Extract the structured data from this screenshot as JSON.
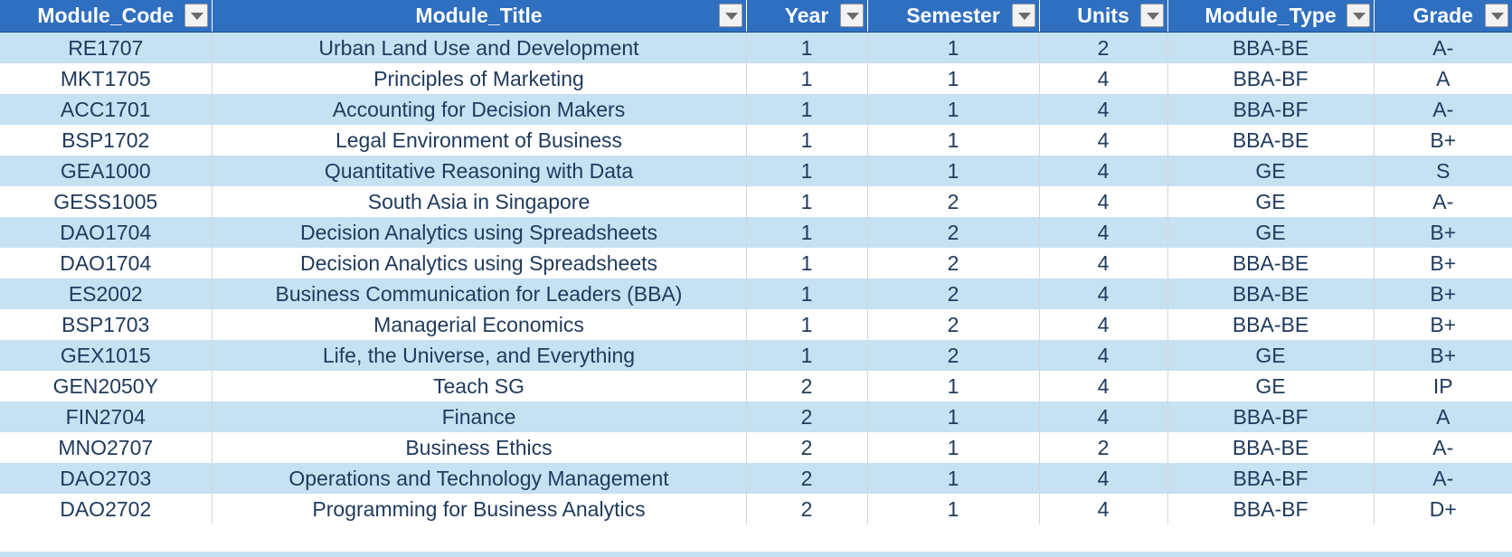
{
  "table": {
    "columns": [
      {
        "key": "code",
        "label": "Module_Code"
      },
      {
        "key": "title",
        "label": "Module_Title"
      },
      {
        "key": "year",
        "label": "Year"
      },
      {
        "key": "semester",
        "label": "Semester"
      },
      {
        "key": "units",
        "label": "Units"
      },
      {
        "key": "type",
        "label": "Module_Type"
      },
      {
        "key": "grade",
        "label": "Grade"
      }
    ],
    "rows": [
      {
        "code": "RE1707",
        "title": "Urban Land Use and Development",
        "year": "1",
        "semester": "1",
        "units": "2",
        "type": "BBA-BE",
        "grade": "A-"
      },
      {
        "code": "MKT1705",
        "title": "Principles of Marketing",
        "year": "1",
        "semester": "1",
        "units": "4",
        "type": "BBA-BF",
        "grade": "A"
      },
      {
        "code": "ACC1701",
        "title": "Accounting for Decision Makers",
        "year": "1",
        "semester": "1",
        "units": "4",
        "type": "BBA-BF",
        "grade": "A-"
      },
      {
        "code": "BSP1702",
        "title": "Legal Environment of Business",
        "year": "1",
        "semester": "1",
        "units": "4",
        "type": "BBA-BE",
        "grade": "B+"
      },
      {
        "code": "GEA1000",
        "title": "Quantitative Reasoning with Data",
        "year": "1",
        "semester": "1",
        "units": "4",
        "type": "GE",
        "grade": "S"
      },
      {
        "code": "GESS1005",
        "title": "South Asia in Singapore",
        "year": "1",
        "semester": "2",
        "units": "4",
        "type": "GE",
        "grade": "A-"
      },
      {
        "code": "DAO1704",
        "title": "Decision Analytics using Spreadsheets",
        "year": "1",
        "semester": "2",
        "units": "4",
        "type": "GE",
        "grade": "B+"
      },
      {
        "code": "DAO1704",
        "title": "Decision Analytics using Spreadsheets",
        "year": "1",
        "semester": "2",
        "units": "4",
        "type": "BBA-BE",
        "grade": "B+"
      },
      {
        "code": "ES2002",
        "title": "Business Communication for Leaders (BBA)",
        "year": "1",
        "semester": "2",
        "units": "4",
        "type": "BBA-BE",
        "grade": "B+"
      },
      {
        "code": "BSP1703",
        "title": "Managerial Economics",
        "year": "1",
        "semester": "2",
        "units": "4",
        "type": "BBA-BE",
        "grade": "B+"
      },
      {
        "code": "GEX1015",
        "title": "Life, the Universe, and Everything",
        "year": "1",
        "semester": "2",
        "units": "4",
        "type": "GE",
        "grade": "B+"
      },
      {
        "code": "GEN2050Y",
        "title": "Teach SG",
        "year": "2",
        "semester": "1",
        "units": "4",
        "type": "GE",
        "grade": "IP"
      },
      {
        "code": "FIN2704",
        "title": "Finance",
        "year": "2",
        "semester": "1",
        "units": "4",
        "type": "BBA-BF",
        "grade": "A"
      },
      {
        "code": "MNO2707",
        "title": "Business Ethics",
        "year": "2",
        "semester": "1",
        "units": "2",
        "type": "BBA-BE",
        "grade": "A-"
      },
      {
        "code": "DAO2703",
        "title": "Operations and Technology Management",
        "year": "2",
        "semester": "1",
        "units": "4",
        "type": "BBA-BF",
        "grade": "A-"
      },
      {
        "code": "DAO2702",
        "title": "Programming for Business Analytics",
        "year": "2",
        "semester": "1",
        "units": "4",
        "type": "BBA-BF",
        "grade": "D+"
      }
    ]
  },
  "colors": {
    "header_bg": "#2f6fc0",
    "header_text": "#ffffff",
    "band_row": "#c6e1f2",
    "plain_row": "#ffffff",
    "cell_text": "#1f3a5c"
  },
  "icons": {
    "filter": "dropdown-arrow-icon"
  }
}
